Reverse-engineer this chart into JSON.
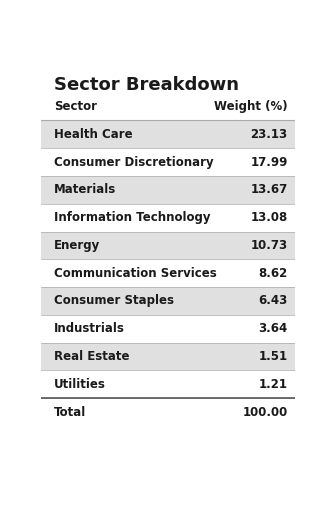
{
  "title": "Sector Breakdown",
  "col1_header": "Sector",
  "col2_header": "Weight (%)",
  "rows": [
    {
      "sector": "Health Care",
      "weight": "23.13",
      "shaded": true
    },
    {
      "sector": "Consumer Discretionary",
      "weight": "17.99",
      "shaded": false
    },
    {
      "sector": "Materials",
      "weight": "13.67",
      "shaded": true
    },
    {
      "sector": "Information Technology",
      "weight": "13.08",
      "shaded": false
    },
    {
      "sector": "Energy",
      "weight": "10.73",
      "shaded": true
    },
    {
      "sector": "Communication Services",
      "weight": "8.62",
      "shaded": false
    },
    {
      "sector": "Consumer Staples",
      "weight": "6.43",
      "shaded": true
    },
    {
      "sector": "Industrials",
      "weight": "3.64",
      "shaded": false
    },
    {
      "sector": "Real Estate",
      "weight": "1.51",
      "shaded": true
    },
    {
      "sector": "Utilities",
      "weight": "1.21",
      "shaded": false
    }
  ],
  "total_label": "Total",
  "total_value": "100.00",
  "bg_color": "#ffffff",
  "shaded_color": "#e0e0e0",
  "title_color": "#1a1a1a",
  "header_color": "#1a1a1a",
  "row_text_color": "#1a1a1a",
  "divider_color": "#aaaaaa",
  "strong_divider_color": "#555555",
  "title_fontsize": 13,
  "header_fontsize": 8.5,
  "row_fontsize": 8.5,
  "total_fontsize": 8.5
}
